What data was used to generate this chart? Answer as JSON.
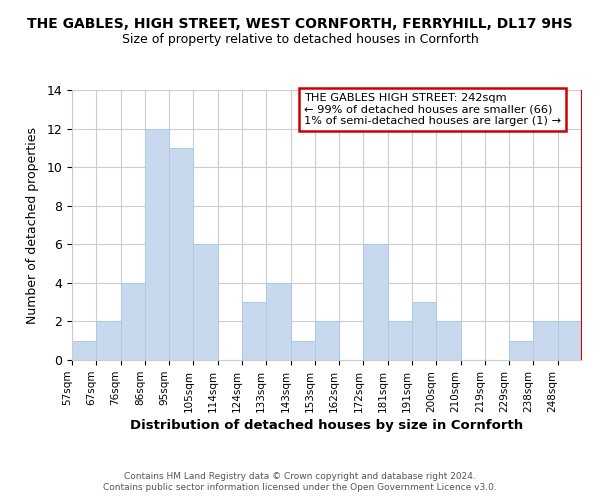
{
  "title": "THE GABLES, HIGH STREET, WEST CORNFORTH, FERRYHILL, DL17 9HS",
  "subtitle": "Size of property relative to detached houses in Cornforth",
  "xlabel": "Distribution of detached houses by size in Cornforth",
  "ylabel": "Number of detached properties",
  "bar_color": "#c8d9ee",
  "bar_edge_color": "#b0c8e8",
  "bin_labels": [
    "57sqm",
    "67sqm",
    "76sqm",
    "86sqm",
    "95sqm",
    "105sqm",
    "114sqm",
    "124sqm",
    "133sqm",
    "143sqm",
    "153sqm",
    "162sqm",
    "172sqm",
    "181sqm",
    "191sqm",
    "200sqm",
    "210sqm",
    "219sqm",
    "229sqm",
    "238sqm",
    "248sqm"
  ],
  "bar_heights": [
    1,
    2,
    4,
    12,
    11,
    6,
    0,
    3,
    4,
    1,
    2,
    0,
    6,
    2,
    3,
    2,
    0,
    0,
    1,
    2,
    2
  ],
  "ylim": [
    0,
    14
  ],
  "yticks": [
    0,
    2,
    4,
    6,
    8,
    10,
    12,
    14
  ],
  "marker_color": "#cc0000",
  "annotation_title": "THE GABLES HIGH STREET: 242sqm",
  "annotation_line1": "← 99% of detached houses are smaller (66)",
  "annotation_line2": "1% of semi-detached houses are larger (1) →",
  "footer1": "Contains HM Land Registry data © Crown copyright and database right 2024.",
  "footer2": "Contains public sector information licensed under the Open Government Licence v3.0.",
  "grid_color": "#cccccc",
  "background_color": "#ffffff"
}
